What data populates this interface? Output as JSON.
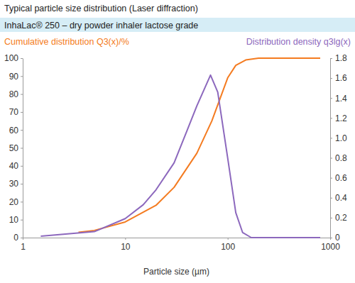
{
  "chart_data": {
    "type": "line",
    "title": "Typical particle size distribution (Laser diffraction)",
    "subtitle": "InhaLac® 250 – dry powder inhaler lactose grade",
    "x_label": "Particle size (µm)",
    "y_label": "Cumulative distribution Q3(x)/%",
    "y2_label": "Distribution density q3lg(x)",
    "log": "x",
    "grid": false,
    "xlim": [
      1,
      1000
    ],
    "xticks": [
      1,
      10,
      100,
      1000
    ],
    "ylim": [
      0,
      100
    ],
    "yticks": [
      0,
      10,
      20,
      30,
      40,
      50,
      60,
      70,
      80,
      90,
      100
    ],
    "y2lim": [
      0,
      1.8
    ],
    "y2ticks": [
      0,
      0.2,
      0.4,
      0.6,
      0.8,
      {
        "value": 1,
        "label": "1.0"
      },
      1.2,
      1.4,
      1.6,
      1.8
    ],
    "series": [
      {
        "name": "Cumulative distribution Q3(x)/%",
        "color": "#f47b20",
        "x": [
          3.5,
          5,
          10,
          20,
          30,
          50,
          70,
          100,
          120,
          150,
          200,
          800
        ],
        "values": [
          3,
          4,
          8.7,
          18,
          28,
          47,
          65,
          89,
          96,
          99,
          100,
          100
        ]
      },
      {
        "name": "Distribution density q3lg(x)",
        "color": "#8c68bd",
        "axis": "y2",
        "x": [
          1.5,
          5,
          10,
          15,
          20,
          30,
          40,
          50,
          68,
          80,
          100,
          120,
          140,
          170,
          800
        ],
        "values": [
          0.015,
          0.06,
          0.19,
          0.33,
          0.48,
          0.75,
          1.07,
          1.32,
          1.63,
          1.46,
          0.8,
          0.25,
          0.05,
          0,
          0
        ]
      }
    ]
  }
}
